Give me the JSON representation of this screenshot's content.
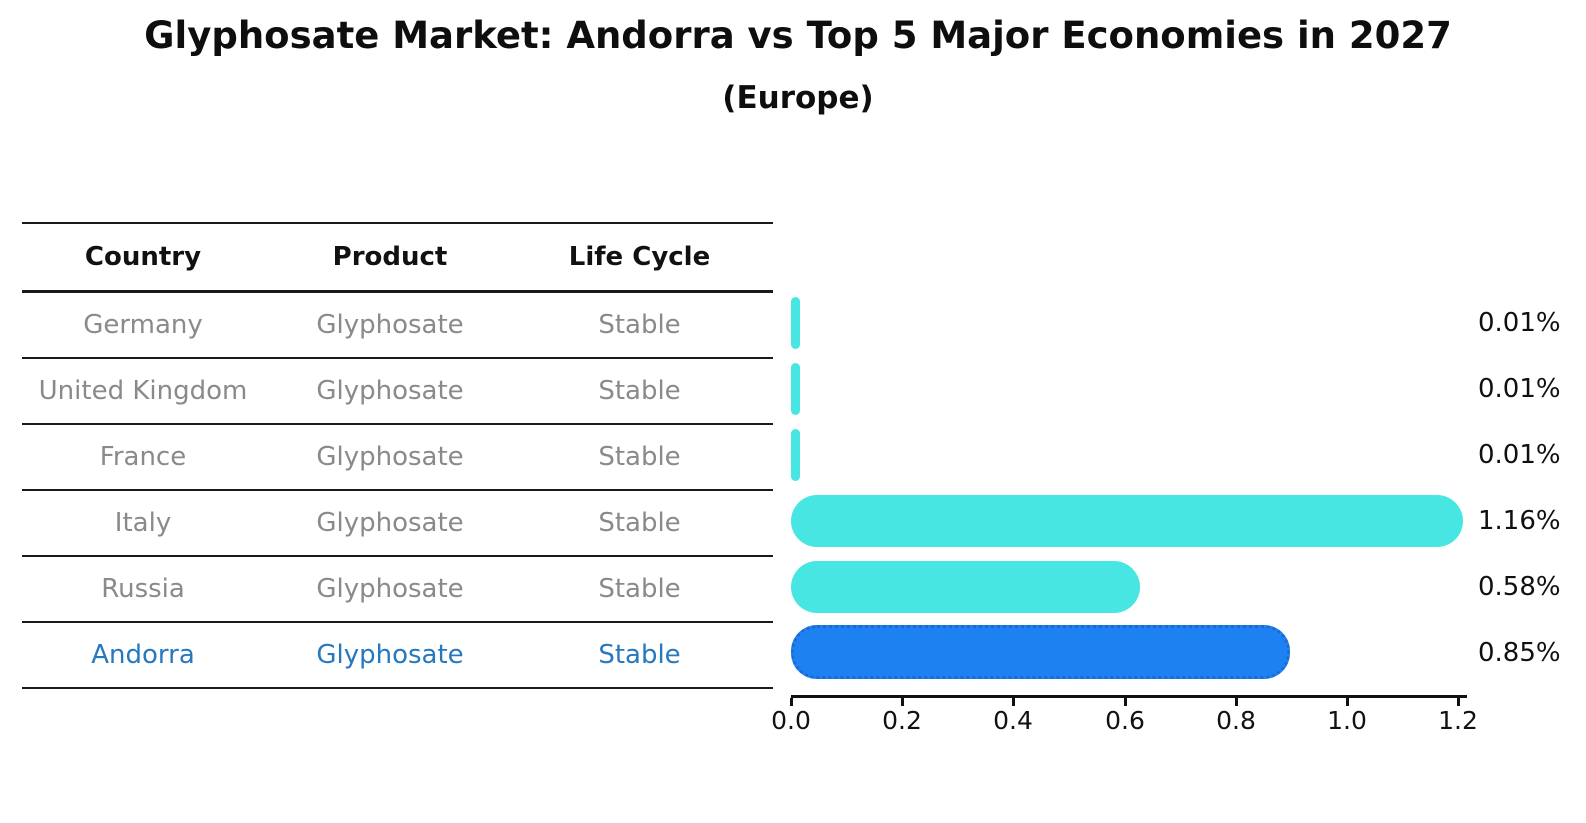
{
  "title": "Glyphosate Market: Andorra vs Top 5 Major Economies in 2027",
  "subtitle": "(Europe)",
  "table": {
    "headers": [
      "Country",
      "Product",
      "Life Cycle"
    ],
    "rows": [
      {
        "country": "Germany",
        "product": "Glyphosate",
        "life_cycle": "Stable",
        "highlight": false
      },
      {
        "country": "United Kingdom",
        "product": "Glyphosate",
        "life_cycle": "Stable",
        "highlight": false
      },
      {
        "country": "France",
        "product": "Glyphosate",
        "life_cycle": "Stable",
        "highlight": false
      },
      {
        "country": "Italy",
        "product": "Glyphosate",
        "life_cycle": "Stable",
        "highlight": false
      },
      {
        "country": "Russia",
        "product": "Glyphosate",
        "life_cycle": "Stable",
        "highlight": false
      },
      {
        "country": "Andorra",
        "product": "Glyphosate",
        "life_cycle": "Stable",
        "highlight": true
      }
    ]
  },
  "chart_data": {
    "type": "bar",
    "orientation": "horizontal",
    "title": "Glyphosate Market: Andorra vs Top 5 Major Economies in 2027 (Europe)",
    "categories": [
      "Germany",
      "United Kingdom",
      "France",
      "Italy",
      "Russia",
      "Andorra"
    ],
    "values": [
      0.01,
      0.01,
      0.01,
      1.16,
      0.58,
      0.85
    ],
    "value_labels": [
      "0.01%",
      "0.01%",
      "0.01%",
      "1.16%",
      "0.58%",
      "0.85%"
    ],
    "x_ticks": [
      "0.0",
      "0.2",
      "0.4",
      "0.6",
      "0.8",
      "1.0",
      "1.2"
    ],
    "xlim": [
      0.0,
      1.2
    ],
    "grid": false,
    "legend": "none",
    "colors": {
      "bar_default": "#47e6e2",
      "bar_highlight": "#1e81f1",
      "bar_highlight_border": "#1a6ad6",
      "highlight_text": "#2678bf",
      "row_text": "#8a8a8a",
      "axis": "#111111"
    }
  }
}
